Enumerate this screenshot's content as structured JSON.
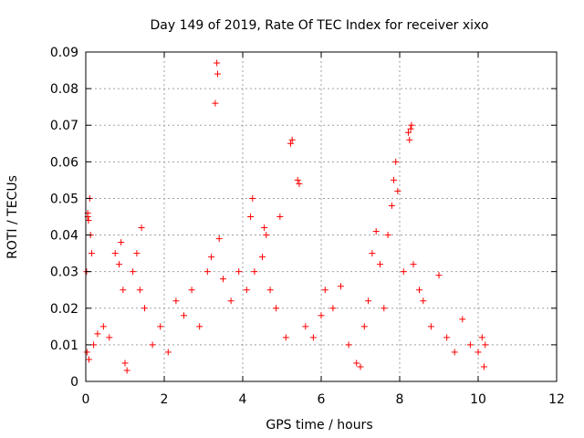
{
  "chart_data": {
    "type": "scatter",
    "title": "Day 149 of 2019, Rate Of TEC Index for receiver xixo",
    "xlabel": "GPS time / hours",
    "ylabel": "ROTI / TECUs",
    "xlim": [
      0,
      12
    ],
    "ylim": [
      0,
      0.09
    ],
    "xticks": [
      0,
      2,
      4,
      6,
      8,
      10,
      12
    ],
    "xtick_labels": [
      "0",
      "2",
      "4",
      "6",
      "8",
      "10",
      "12"
    ],
    "yticks": [
      0,
      0.01,
      0.02,
      0.03,
      0.04,
      0.05,
      0.06,
      0.07,
      0.08,
      0.09
    ],
    "ytick_labels": [
      "0",
      "0.01",
      "0.02",
      "0.03",
      "0.04",
      "0.05",
      "0.06",
      "0.07",
      "0.08",
      "0.09"
    ],
    "grid": true,
    "marker": "+",
    "color": "#ff0000",
    "series": [
      {
        "name": "ROTI",
        "points": [
          [
            0.02,
            0.03
          ],
          [
            0.05,
            0.046
          ],
          [
            0.05,
            0.045
          ],
          [
            0.07,
            0.044
          ],
          [
            0.1,
            0.05
          ],
          [
            0.12,
            0.04
          ],
          [
            0.15,
            0.035
          ],
          [
            0.03,
            0.008
          ],
          [
            0.08,
            0.006
          ],
          [
            0.2,
            0.01
          ],
          [
            0.3,
            0.013
          ],
          [
            0.45,
            0.015
          ],
          [
            0.6,
            0.012
          ],
          [
            0.75,
            0.035
          ],
          [
            0.85,
            0.032
          ],
          [
            0.9,
            0.038
          ],
          [
            0.95,
            0.025
          ],
          [
            1.0,
            0.005
          ],
          [
            1.05,
            0.003
          ],
          [
            1.2,
            0.03
          ],
          [
            1.3,
            0.035
          ],
          [
            1.38,
            0.025
          ],
          [
            1.42,
            0.042
          ],
          [
            1.5,
            0.02
          ],
          [
            1.7,
            0.01
          ],
          [
            1.9,
            0.015
          ],
          [
            2.1,
            0.008
          ],
          [
            2.3,
            0.022
          ],
          [
            2.5,
            0.018
          ],
          [
            2.7,
            0.025
          ],
          [
            2.9,
            0.015
          ],
          [
            3.1,
            0.03
          ],
          [
            3.2,
            0.034
          ],
          [
            3.3,
            0.076
          ],
          [
            3.34,
            0.087
          ],
          [
            3.36,
            0.084
          ],
          [
            3.4,
            0.039
          ],
          [
            3.5,
            0.028
          ],
          [
            3.7,
            0.022
          ],
          [
            3.9,
            0.03
          ],
          [
            4.1,
            0.025
          ],
          [
            4.2,
            0.045
          ],
          [
            4.25,
            0.05
          ],
          [
            4.3,
            0.03
          ],
          [
            4.5,
            0.034
          ],
          [
            4.55,
            0.042
          ],
          [
            4.6,
            0.04
          ],
          [
            4.7,
            0.025
          ],
          [
            4.85,
            0.02
          ],
          [
            4.95,
            0.045
          ],
          [
            5.1,
            0.012
          ],
          [
            5.22,
            0.065
          ],
          [
            5.26,
            0.066
          ],
          [
            5.4,
            0.055
          ],
          [
            5.44,
            0.054
          ],
          [
            5.6,
            0.015
          ],
          [
            5.8,
            0.012
          ],
          [
            6.0,
            0.018
          ],
          [
            6.1,
            0.025
          ],
          [
            6.3,
            0.02
          ],
          [
            6.5,
            0.026
          ],
          [
            6.7,
            0.01
          ],
          [
            6.9,
            0.005
          ],
          [
            7.0,
            0.004
          ],
          [
            7.1,
            0.015
          ],
          [
            7.2,
            0.022
          ],
          [
            7.3,
            0.035
          ],
          [
            7.4,
            0.041
          ],
          [
            7.5,
            0.032
          ],
          [
            7.6,
            0.02
          ],
          [
            7.7,
            0.04
          ],
          [
            7.8,
            0.048
          ],
          [
            7.85,
            0.055
          ],
          [
            7.9,
            0.06
          ],
          [
            7.95,
            0.052
          ],
          [
            8.1,
            0.03
          ],
          [
            8.22,
            0.068
          ],
          [
            8.25,
            0.066
          ],
          [
            8.28,
            0.069
          ],
          [
            8.3,
            0.07
          ],
          [
            8.35,
            0.032
          ],
          [
            8.5,
            0.025
          ],
          [
            8.6,
            0.022
          ],
          [
            8.8,
            0.015
          ],
          [
            9.0,
            0.029
          ],
          [
            9.2,
            0.012
          ],
          [
            9.4,
            0.008
          ],
          [
            9.6,
            0.017
          ],
          [
            9.8,
            0.01
          ],
          [
            10.0,
            0.008
          ],
          [
            10.1,
            0.012
          ],
          [
            10.15,
            0.004
          ],
          [
            10.18,
            0.01
          ]
        ]
      }
    ]
  }
}
